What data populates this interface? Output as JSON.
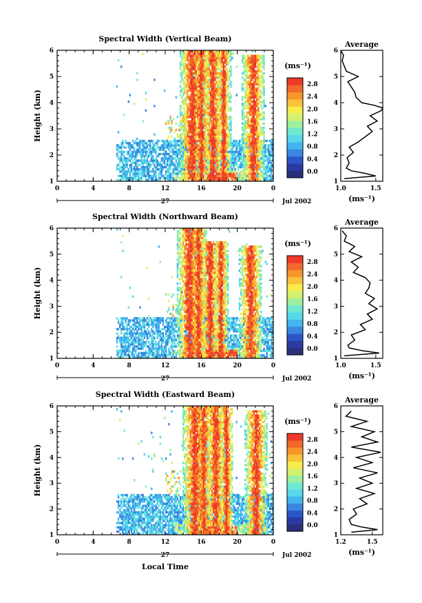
{
  "colorbar_unit": "(ms⁻¹)",
  "day_label": "27",
  "month_label": "Jul 2002",
  "xlabel": "Local Time",
  "avg_title": "Average",
  "avg_unit": "(ms⁻¹)",
  "ylabel": "Height (km)",
  "colorscale": [
    "#2a2f7a",
    "#2a3aa0",
    "#2c55c8",
    "#3a86e0",
    "#42b4ef",
    "#56d8ea",
    "#6ee8d0",
    "#9cf0a0",
    "#d4f070",
    "#f6ec4c",
    "#f8c23a",
    "#f6952c",
    "#f2682a",
    "#ee3a2a"
  ],
  "chart_data": [
    {
      "type": "heatmap",
      "title": "Spectral Width (Vertical Beam)",
      "xlabel": "Local Time",
      "ylabel": "Height (km)",
      "xlim": [
        0,
        24
      ],
      "ylim": [
        1,
        6
      ],
      "xticks": [
        "0",
        "4",
        "8",
        "12",
        "16",
        "20",
        "0"
      ],
      "yticks": [
        "1",
        "2",
        "3",
        "4",
        "5",
        "6"
      ],
      "colorbar": {
        "ticks": [
          "0.0",
          "0.4",
          "0.8",
          "1.2",
          "1.6",
          "2.0",
          "2.4",
          "2.8"
        ],
        "range": [
          0,
          2.8
        ]
      },
      "average_profile": {
        "xlim": [
          1.0,
          1.6
        ],
        "xticks": [
          "1.0",
          "1.5"
        ],
        "height": [
          1.1,
          1.2,
          1.3,
          1.4,
          1.5,
          1.7,
          1.9,
          2.1,
          2.3,
          2.5,
          2.7,
          2.9,
          3.1,
          3.3,
          3.5,
          3.7,
          3.8,
          3.9,
          4.0,
          4.2,
          4.4,
          4.6,
          4.8,
          5.0,
          5.2,
          5.4,
          5.6,
          5.8,
          6.0
        ],
        "value": [
          1.05,
          1.5,
          1.35,
          1.15,
          1.08,
          1.12,
          1.09,
          1.18,
          1.12,
          1.25,
          1.35,
          1.45,
          1.38,
          1.52,
          1.42,
          1.58,
          1.6,
          1.48,
          1.3,
          1.22,
          1.2,
          1.15,
          1.1,
          1.25,
          1.08,
          1.05,
          1.02,
          1.04,
          1.0
        ]
      }
    },
    {
      "type": "heatmap",
      "title": "Spectral Width (Northward Beam)",
      "xlabel": "Local Time",
      "ylabel": "Height (km)",
      "xlim": [
        0,
        24
      ],
      "ylim": [
        1,
        6
      ],
      "xticks": [
        "0",
        "4",
        "8",
        "12",
        "16",
        "20",
        "0"
      ],
      "yticks": [
        "1",
        "2",
        "3",
        "4",
        "5",
        "6"
      ],
      "colorbar": {
        "ticks": [
          "0.0",
          "0.4",
          "0.8",
          "1.2",
          "1.6",
          "2.0",
          "2.4",
          "2.8"
        ],
        "range": [
          0,
          2.8
        ]
      },
      "average_profile": {
        "xlim": [
          1.0,
          1.6
        ],
        "xticks": [
          "1.0",
          "1.5"
        ],
        "height": [
          1.1,
          1.2,
          1.3,
          1.4,
          1.5,
          1.7,
          1.9,
          2.1,
          2.3,
          2.5,
          2.7,
          2.9,
          3.1,
          3.3,
          3.5,
          3.7,
          3.9,
          4.1,
          4.3,
          4.5,
          4.7,
          4.9,
          5.1,
          5.3,
          5.5,
          5.7,
          5.9
        ],
        "value": [
          1.05,
          1.55,
          1.3,
          1.12,
          1.1,
          1.2,
          1.15,
          1.35,
          1.28,
          1.45,
          1.38,
          1.52,
          1.4,
          1.48,
          1.35,
          1.4,
          1.42,
          1.35,
          1.18,
          1.25,
          1.15,
          1.3,
          1.12,
          1.2,
          1.05,
          1.08,
          1.02
        ]
      }
    },
    {
      "type": "heatmap",
      "title": "Spectral Width (Eastward Beam)",
      "xlabel": "Local Time",
      "ylabel": "Height (km)",
      "xlim": [
        0,
        24
      ],
      "ylim": [
        1,
        6
      ],
      "xticks": [
        "0",
        "4",
        "8",
        "12",
        "16",
        "20",
        "0"
      ],
      "yticks": [
        "1",
        "2",
        "3",
        "4",
        "5",
        "6"
      ],
      "colorbar": {
        "ticks": [
          "0.0",
          "0.4",
          "0.8",
          "1.2",
          "1.6",
          "2.0",
          "2.4",
          "2.8"
        ],
        "range": [
          0,
          2.8
        ]
      },
      "average_profile": {
        "xlim": [
          1.2,
          1.6
        ],
        "xticks": [
          "1.2",
          "1.5"
        ],
        "height": [
          1.1,
          1.2,
          1.3,
          1.4,
          1.6,
          1.8,
          2.0,
          2.2,
          2.4,
          2.6,
          2.8,
          3.0,
          3.2,
          3.4,
          3.6,
          3.8,
          4.0,
          4.2,
          4.4,
          4.6,
          4.8,
          5.0,
          5.2,
          5.4,
          5.6,
          5.8
        ],
        "value": [
          1.3,
          1.55,
          1.4,
          1.3,
          1.28,
          1.35,
          1.32,
          1.45,
          1.38,
          1.52,
          1.35,
          1.5,
          1.38,
          1.55,
          1.32,
          1.5,
          1.35,
          1.58,
          1.3,
          1.55,
          1.4,
          1.52,
          1.3,
          1.45,
          1.25,
          1.3
        ]
      }
    }
  ]
}
